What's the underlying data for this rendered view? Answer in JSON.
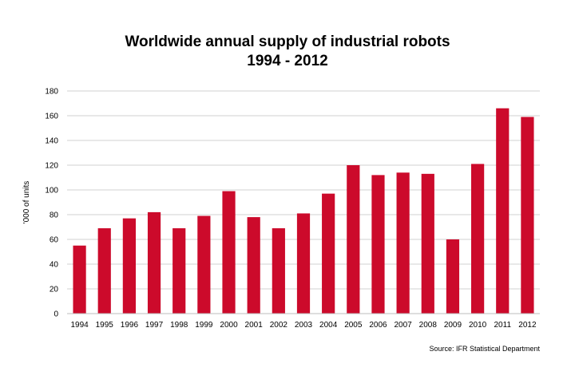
{
  "chart_data": {
    "type": "bar",
    "title": "Worldwide annual supply of industrial robots",
    "subtitle": "1994 - 2012",
    "ylabel": "'000 of units",
    "xlabel": "",
    "source": "Source: IFR Statistical Department",
    "categories": [
      "1994",
      "1995",
      "1996",
      "1997",
      "1998",
      "1999",
      "2000",
      "2001",
      "2002",
      "2003",
      "2004",
      "2005",
      "2006",
      "2007",
      "2008",
      "2009",
      "2010",
      "2011",
      "2012"
    ],
    "values": [
      55,
      69,
      77,
      82,
      69,
      79,
      99,
      78,
      69,
      81,
      97,
      120,
      112,
      114,
      113,
      60,
      121,
      166,
      159
    ],
    "ylim": [
      0,
      180
    ],
    "yticks": [
      0,
      20,
      40,
      60,
      80,
      100,
      120,
      140,
      160,
      180
    ],
    "grid": true,
    "bar_color": "#cc0a2b"
  }
}
